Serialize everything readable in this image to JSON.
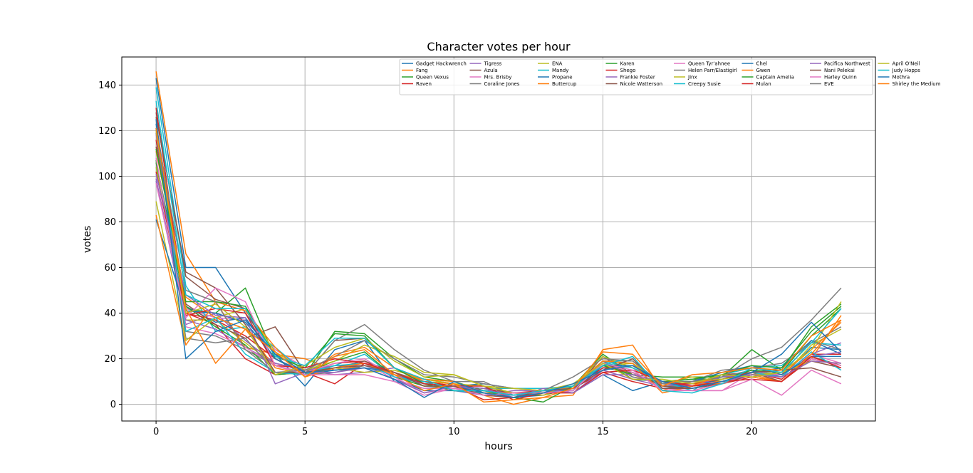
{
  "chart_data": {
    "type": "line",
    "title": "Character votes per hour",
    "xlabel": "hours",
    "ylabel": "votes",
    "xlim": [
      -1.15,
      24.15
    ],
    "ylim": [
      -7.3,
      152.3
    ],
    "xticks": [
      0,
      5,
      10,
      15,
      20
    ],
    "yticks": [
      0,
      20,
      40,
      60,
      80,
      100,
      120,
      140
    ],
    "grid": true,
    "legend_position": "top-right",
    "legend_columns": 8,
    "x": [
      0,
      1,
      2,
      3,
      4,
      5,
      6,
      7,
      8,
      9,
      10,
      11,
      12,
      13,
      14,
      15,
      16,
      17,
      18,
      19,
      20,
      21,
      22,
      23
    ],
    "colors": [
      "#1f77b4",
      "#ff7f0e",
      "#2ca02c",
      "#d62728",
      "#9467bd",
      "#8c564b",
      "#e377c2",
      "#7f7f7f",
      "#bcbd22",
      "#17becf"
    ],
    "series": [
      {
        "name": "Gadget Hackwrench",
        "values": [
          143,
          60,
          60,
          40,
          22,
          8,
          24,
          28,
          10,
          7,
          8,
          9,
          7,
          7,
          5,
          13,
          6,
          10,
          10,
          12,
          15,
          12,
          25,
          24
        ]
      },
      {
        "name": "Fang",
        "values": [
          146,
          66,
          45,
          25,
          22,
          20,
          15,
          17,
          14,
          10,
          8,
          4,
          0,
          3,
          4,
          24,
          26,
          6,
          10,
          10,
          13,
          10,
          20,
          39
        ]
      },
      {
        "name": "Queen Vexus",
        "values": [
          107,
          42,
          40,
          51,
          20,
          13,
          32,
          31,
          20,
          12,
          10,
          6,
          5,
          5,
          8,
          22,
          13,
          12,
          12,
          12,
          24,
          15,
          34,
          44
        ]
      },
      {
        "name": "Raven",
        "values": [
          116,
          40,
          35,
          20,
          13,
          14,
          9,
          18,
          14,
          8,
          8,
          2,
          3,
          5,
          7,
          14,
          10,
          7,
          8,
          9,
          12,
          10,
          20,
          17
        ]
      },
      {
        "name": "Tigress",
        "values": [
          98,
          35,
          40,
          28,
          18,
          15,
          13,
          14,
          16,
          9,
          6,
          4,
          6,
          6,
          5,
          15,
          11,
          8,
          9,
          12,
          14,
          13,
          22,
          27
        ]
      },
      {
        "name": "Azula",
        "values": [
          128,
          56,
          46,
          42,
          17,
          13,
          28,
          29,
          16,
          11,
          9,
          4,
          3,
          5,
          6,
          21,
          13,
          9,
          9,
          13,
          14,
          10,
          21,
          17
        ]
      },
      {
        "name": "Mrs. Brisby",
        "values": [
          118,
          42,
          38,
          37,
          24,
          16,
          20,
          18,
          11,
          7,
          7,
          6,
          5,
          5,
          8,
          18,
          16,
          7,
          6,
          6,
          14,
          13,
          22,
          18
        ]
      },
      {
        "name": "Coraline Jones",
        "values": [
          121,
          32,
          30,
          24,
          17,
          13,
          14,
          17,
          14,
          10,
          8,
          6,
          5,
          5,
          8,
          19,
          19,
          8,
          8,
          12,
          15,
          13,
          28,
          24
        ]
      },
      {
        "name": "ENA",
        "values": [
          104,
          37,
          37,
          27,
          17,
          13,
          16,
          14,
          15,
          11,
          9,
          8,
          5,
          5,
          8,
          17,
          18,
          9,
          12,
          10,
          13,
          12,
          26,
          33
        ]
      },
      {
        "name": "Mandy",
        "values": [
          139,
          52,
          32,
          34,
          25,
          14,
          17,
          22,
          12,
          9,
          8,
          7,
          7,
          7,
          8,
          19,
          16,
          10,
          6,
          13,
          16,
          17,
          27,
          26
        ]
      },
      {
        "name": "Propane",
        "values": [
          123,
          43,
          36,
          38,
          20,
          13,
          15,
          16,
          11,
          6,
          6,
          5,
          3,
          4,
          8,
          16,
          14,
          7,
          8,
          11,
          14,
          16,
          28,
          22
        ]
      },
      {
        "name": "Buttercup",
        "values": [
          111,
          47,
          38,
          33,
          16,
          13,
          22,
          25,
          16,
          10,
          9,
          5,
          4,
          5,
          7,
          18,
          13,
          9,
          9,
          9,
          13,
          13,
          24,
          36
        ]
      },
      {
        "name": "Karen",
        "values": [
          106,
          43,
          34,
          26,
          13,
          14,
          19,
          23,
          12,
          8,
          8,
          6,
          4,
          4,
          7,
          19,
          11,
          10,
          11,
          11,
          15,
          14,
          30,
          42
        ]
      },
      {
        "name": "Shego",
        "values": [
          102,
          40,
          37,
          30,
          20,
          14,
          18,
          19,
          12,
          10,
          8,
          6,
          5,
          6,
          7,
          16,
          17,
          9,
          9,
          11,
          14,
          11,
          22,
          22
        ]
      },
      {
        "name": "Frankie Foster",
        "values": [
          99,
          37,
          33,
          25,
          18,
          15,
          17,
          17,
          13,
          9,
          8,
          6,
          5,
          5,
          8,
          19,
          12,
          9,
          8,
          12,
          13,
          13,
          21,
          23
        ]
      },
      {
        "name": "Nicole Watterson",
        "values": [
          113,
          44,
          35,
          29,
          34,
          14,
          16,
          19,
          14,
          9,
          8,
          7,
          5,
          4,
          8,
          17,
          14,
          8,
          7,
          9,
          13,
          12,
          19,
          16
        ]
      },
      {
        "name": "Queen Tyr'ahnee",
        "values": [
          108,
          34,
          31,
          25,
          17,
          14,
          18,
          20,
          12,
          5,
          7,
          5,
          4,
          5,
          6,
          18,
          14,
          7,
          6,
          9,
          14,
          13,
          20,
          17
        ]
      },
      {
        "name": "Helen Parr/Elastigirl",
        "values": [
          119,
          29,
          27,
          29,
          14,
          13,
          28,
          35,
          24,
          15,
          10,
          10,
          4,
          5,
          7,
          19,
          12,
          10,
          10,
          15,
          16,
          18,
          27,
          34
        ]
      },
      {
        "name": "Jinx",
        "values": [
          89,
          28,
          38,
          42,
          23,
          15,
          19,
          26,
          21,
          14,
          13,
          8,
          5,
          4,
          8,
          21,
          16,
          9,
          10,
          11,
          13,
          14,
          19,
          18
        ]
      },
      {
        "name": "Creepy Susie",
        "values": [
          121,
          32,
          38,
          22,
          14,
          13,
          17,
          18,
          12,
          10,
          6,
          5,
          4,
          5,
          7,
          18,
          16,
          10,
          7,
          10,
          14,
          12,
          23,
          15
        ]
      },
      {
        "name": "Chel",
        "values": [
          81,
          41,
          40,
          36,
          20,
          14,
          15,
          16,
          14,
          9,
          8,
          5,
          4,
          6,
          6,
          17,
          17,
          9,
          10,
          14,
          17,
          13,
          21,
          21
        ]
      },
      {
        "name": "Gwen",
        "values": [
          83,
          26,
          45,
          41,
          25,
          12,
          16,
          18,
          13,
          11,
          10,
          5,
          5,
          5,
          8,
          19,
          18,
          5,
          8,
          13,
          12,
          10,
          22,
          37
        ]
      },
      {
        "name": "Captain Amelia",
        "values": [
          112,
          45,
          45,
          43,
          21,
          16,
          31,
          30,
          16,
          9,
          6,
          6,
          3,
          1,
          8,
          17,
          13,
          10,
          11,
          13,
          17,
          16,
          32,
          43
        ]
      },
      {
        "name": "Mulan",
        "values": [
          130,
          39,
          42,
          40,
          17,
          16,
          20,
          18,
          14,
          9,
          8,
          8,
          2,
          5,
          5,
          14,
          15,
          10,
          8,
          10,
          11,
          10,
          21,
          16
        ]
      },
      {
        "name": "Pacifica Northwest",
        "values": [
          101,
          48,
          39,
          38,
          9,
          14,
          14,
          16,
          11,
          5,
          8,
          7,
          3,
          7,
          5,
          13,
          13,
          10,
          7,
          10,
          13,
          12,
          19,
          18
        ]
      },
      {
        "name": "Nani Pelekai",
        "values": [
          126,
          58,
          51,
          35,
          14,
          14,
          16,
          17,
          14,
          8,
          8,
          4,
          3,
          6,
          7,
          15,
          20,
          7,
          7,
          10,
          14,
          15,
          16,
          12
        ]
      },
      {
        "name": "Harley Quinn",
        "values": [
          97,
          38,
          51,
          45,
          17,
          13,
          13,
          13,
          10,
          4,
          7,
          4,
          5,
          5,
          6,
          18,
          15,
          6,
          6,
          6,
          11,
          4,
          15,
          9
        ]
      },
      {
        "name": "EVE",
        "values": [
          121,
          50,
          45,
          24,
          14,
          15,
          21,
          28,
          20,
          13,
          12,
          9,
          7,
          6,
          12,
          20,
          19,
          9,
          10,
          12,
          20,
          25,
          37,
          51
        ]
      },
      {
        "name": "April O'Neil",
        "values": [
          120,
          40,
          44,
          34,
          13,
          17,
          25,
          29,
          19,
          12,
          13,
          8,
          7,
          6,
          9,
          18,
          11,
          11,
          9,
          13,
          12,
          14,
          24,
          45
        ]
      },
      {
        "name": "Judy Hopps",
        "values": [
          133,
          48,
          42,
          42,
          21,
          17,
          29,
          29,
          16,
          11,
          6,
          6,
          4,
          6,
          8,
          17,
          21,
          6,
          5,
          9,
          16,
          14,
          27,
          42
        ]
      },
      {
        "name": "Mothra",
        "values": [
          125,
          20,
          32,
          37,
          22,
          14,
          15,
          16,
          11,
          3,
          10,
          5,
          3,
          5,
          9,
          15,
          17,
          10,
          7,
          10,
          14,
          22,
          36,
          23
        ]
      },
      {
        "name": "Shirley the Medium",
        "values": [
          121,
          42,
          18,
          33,
          23,
          12,
          21,
          24,
          13,
          6,
          9,
          1,
          2,
          3,
          7,
          23,
          22,
          8,
          13,
          14,
          16,
          15,
          30,
          37
        ]
      }
    ]
  }
}
